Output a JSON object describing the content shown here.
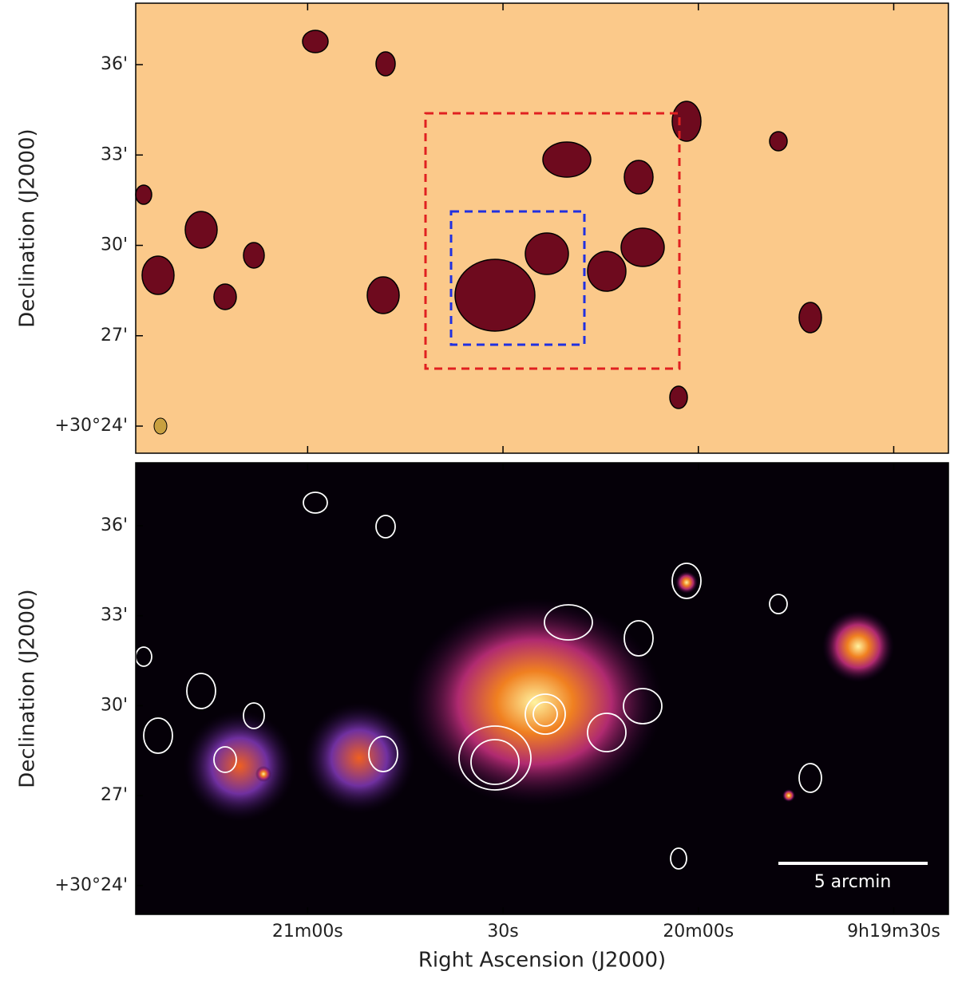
{
  "chart_data": [
    {
      "type": "image",
      "ylabel": "Declination (J2000)",
      "xlim": [
        140.36,
        139.84
      ],
      "ylim": [
        30.385,
        30.634
      ],
      "xticks": [
        140.25,
        140.125,
        140.0,
        139.875
      ],
      "yticks": [
        {
          "value": 30.4,
          "label": "+30°24'"
        },
        {
          "value": 30.45,
          "label": "27'"
        },
        {
          "value": 30.5,
          "label": "30'"
        },
        {
          "value": 30.55,
          "label": "33'"
        },
        {
          "value": 30.6,
          "label": "36'"
        }
      ]
    },
    {
      "type": "image",
      "ylabel": "Declination (J2000)",
      "xlabel": "Right Ascension (J2000)",
      "annotation": "5 arcmin",
      "xlim": [
        140.36,
        139.84
      ],
      "ylim": [
        30.384,
        30.635
      ],
      "xticks": [
        {
          "value": 140.25,
          "label": "21m00s"
        },
        {
          "value": 140.125,
          "label": "30s"
        },
        {
          "value": 140.0,
          "label": "20m00s"
        },
        {
          "value": 139.875,
          "label": "9h19m30s"
        }
      ],
      "yticks": [
        {
          "value": 30.4,
          "label": "+30°24'"
        },
        {
          "value": 30.45,
          "label": "27'"
        },
        {
          "value": 30.5,
          "label": "30'"
        },
        {
          "value": 30.55,
          "label": "33'"
        },
        {
          "value": 30.6,
          "label": "36'"
        }
      ]
    }
  ]
}
